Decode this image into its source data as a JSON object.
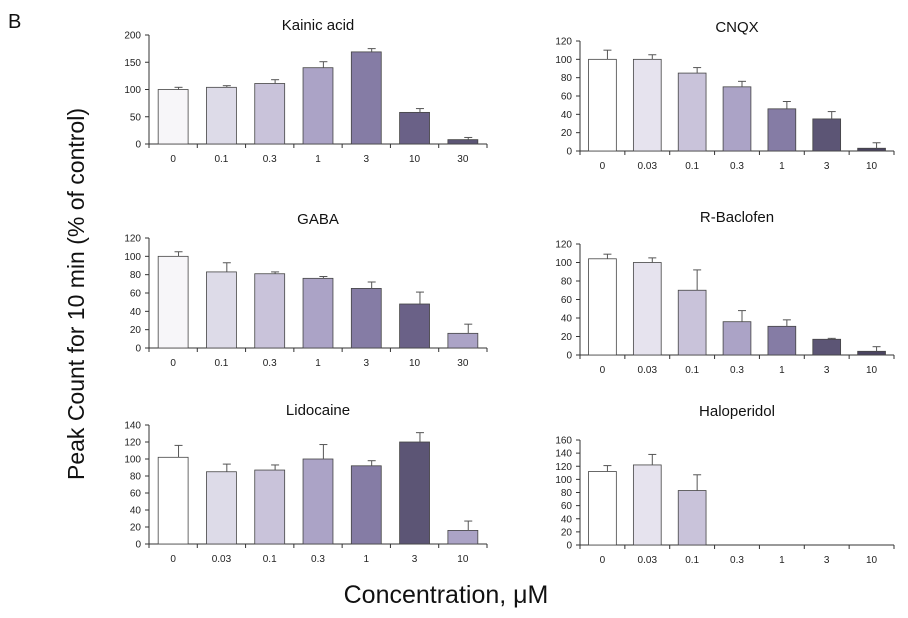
{
  "panel_label": "B",
  "ylabel": "Peak Count for 10 min (% of control)",
  "xlabel": "Concentration, μM",
  "chart_data": [
    {
      "type": "bar",
      "title": "Kainic acid",
      "categories": [
        "0",
        "0.1",
        "0.3",
        "1",
        "3",
        "10",
        "30"
      ],
      "values": [
        100,
        104,
        111,
        140,
        169,
        58,
        8
      ],
      "errors": [
        4,
        3,
        7,
        11,
        6,
        7,
        4
      ],
      "ylim": [
        0,
        200
      ],
      "yticks": [
        0,
        50,
        100,
        150,
        200
      ],
      "bar_colors": [
        "#f7f6f9",
        "#dddbe8",
        "#c9c3da",
        "#aba3c6",
        "#857ca5",
        "#6a6187",
        "#5c5575"
      ]
    },
    {
      "type": "bar",
      "title": "CNQX",
      "categories": [
        "0",
        "0.03",
        "0.1",
        "0.3",
        "1",
        "3",
        "10"
      ],
      "values": [
        100,
        100,
        85,
        70,
        46,
        35,
        3
      ],
      "errors": [
        10,
        5,
        6,
        6,
        8,
        8,
        6
      ],
      "ylim": [
        0,
        120
      ],
      "yticks": [
        0,
        20,
        40,
        60,
        80,
        100,
        120
      ],
      "bar_colors": [
        "#ffffff",
        "#e6e3ee",
        "#c9c3da",
        "#aba3c6",
        "#857ca5",
        "#5c5575",
        "#4a4460"
      ]
    },
    {
      "type": "bar",
      "title": "GABA",
      "categories": [
        "0",
        "0.1",
        "0.3",
        "1",
        "3",
        "10",
        "30"
      ],
      "values": [
        100,
        83,
        81,
        76,
        65,
        48,
        16
      ],
      "errors": [
        5,
        10,
        2,
        2,
        7,
        13,
        10
      ],
      "ylim": [
        0,
        120
      ],
      "yticks": [
        0,
        20,
        40,
        60,
        80,
        100,
        120
      ],
      "bar_colors": [
        "#f7f6f9",
        "#dddbe8",
        "#c9c3da",
        "#aba3c6",
        "#857ca5",
        "#6a6187",
        "#aba3c6"
      ]
    },
    {
      "type": "bar",
      "title": "R-Baclofen",
      "categories": [
        "0",
        "0.03",
        "0.1",
        "0.3",
        "1",
        "3",
        "10"
      ],
      "values": [
        104,
        100,
        70,
        36,
        31,
        17,
        4
      ],
      "errors": [
        5,
        5,
        22,
        12,
        7,
        1,
        5
      ],
      "ylim": [
        0,
        120
      ],
      "yticks": [
        0,
        20,
        40,
        60,
        80,
        100,
        120
      ],
      "bar_colors": [
        "#ffffff",
        "#e6e3ee",
        "#c9c3da",
        "#aba3c6",
        "#857ca5",
        "#5c5575",
        "#4a4460"
      ]
    },
    {
      "type": "bar",
      "title": "Lidocaine",
      "categories": [
        "0",
        "0.03",
        "0.1",
        "0.3",
        "1",
        "3",
        "10"
      ],
      "values": [
        102,
        85,
        87,
        100,
        92,
        120,
        16
      ],
      "errors": [
        14,
        9,
        6,
        17,
        6,
        11,
        11
      ],
      "ylim": [
        0,
        140
      ],
      "yticks": [
        0,
        20,
        40,
        60,
        80,
        100,
        120,
        140
      ],
      "bar_colors": [
        "#ffffff",
        "#dddbe8",
        "#c9c3da",
        "#aba3c6",
        "#857ca5",
        "#5c5575",
        "#aba3c6"
      ]
    },
    {
      "type": "bar",
      "title": "Haloperidol",
      "categories": [
        "0",
        "0.03",
        "0.1",
        "0.3",
        "1",
        "3",
        "10"
      ],
      "values": [
        112,
        122,
        83,
        0,
        0,
        0,
        0
      ],
      "errors": [
        9,
        16,
        24,
        0,
        0,
        0,
        0
      ],
      "ylim": [
        0,
        160
      ],
      "yticks": [
        0,
        20,
        40,
        60,
        80,
        100,
        120,
        140,
        160
      ],
      "bar_colors": [
        "#ffffff",
        "#e6e3ee",
        "#c9c3da",
        "#aba3c6",
        "#857ca5",
        "#5c5575",
        "#4a4460"
      ]
    }
  ]
}
